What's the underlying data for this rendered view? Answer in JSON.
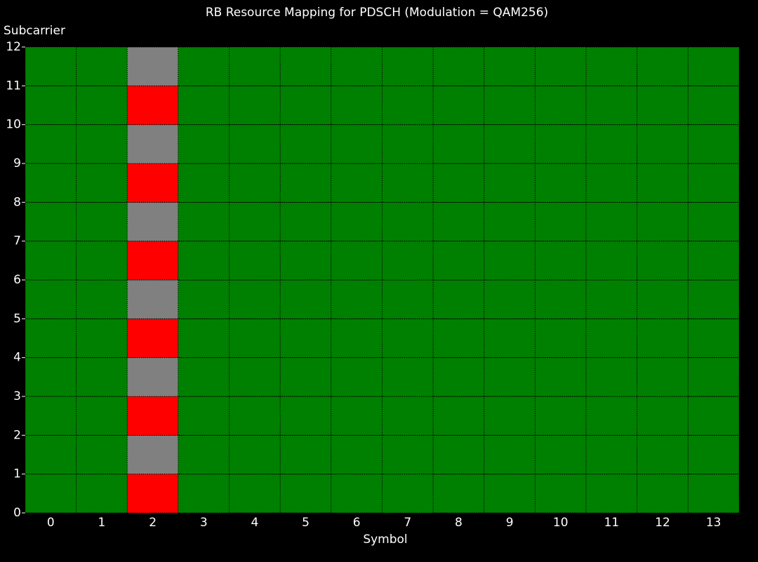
{
  "chart_data": {
    "type": "grid",
    "title": "RB Resource Mapping for PDSCH (Modulation = QAM256)",
    "x_label": "Symbol",
    "y_label": "Subcarrier",
    "categories": [
      0,
      1,
      2,
      3,
      4,
      5,
      6,
      7,
      8,
      9,
      10,
      11,
      12,
      13
    ],
    "ylim": [
      0,
      12
    ],
    "yticks": [
      0,
      1,
      2,
      3,
      4,
      5,
      6,
      7,
      8,
      9,
      10,
      11,
      12
    ],
    "grid": true,
    "cells": [
      [
        "#008000",
        "#008000",
        "#ff0000",
        "#008000",
        "#008000",
        "#008000",
        "#008000",
        "#008000",
        "#008000",
        "#008000",
        "#008000",
        "#008000",
        "#008000",
        "#008000"
      ],
      [
        "#008000",
        "#008000",
        "#808080",
        "#008000",
        "#008000",
        "#008000",
        "#008000",
        "#008000",
        "#008000",
        "#008000",
        "#008000",
        "#008000",
        "#008000",
        "#008000"
      ],
      [
        "#008000",
        "#008000",
        "#ff0000",
        "#008000",
        "#008000",
        "#008000",
        "#008000",
        "#008000",
        "#008000",
        "#008000",
        "#008000",
        "#008000",
        "#008000",
        "#008000"
      ],
      [
        "#008000",
        "#008000",
        "#808080",
        "#008000",
        "#008000",
        "#008000",
        "#008000",
        "#008000",
        "#008000",
        "#008000",
        "#008000",
        "#008000",
        "#008000",
        "#008000"
      ],
      [
        "#008000",
        "#008000",
        "#ff0000",
        "#008000",
        "#008000",
        "#008000",
        "#008000",
        "#008000",
        "#008000",
        "#008000",
        "#008000",
        "#008000",
        "#008000",
        "#008000"
      ],
      [
        "#008000",
        "#008000",
        "#808080",
        "#008000",
        "#008000",
        "#008000",
        "#008000",
        "#008000",
        "#008000",
        "#008000",
        "#008000",
        "#008000",
        "#008000",
        "#008000"
      ],
      [
        "#008000",
        "#008000",
        "#ff0000",
        "#008000",
        "#008000",
        "#008000",
        "#008000",
        "#008000",
        "#008000",
        "#008000",
        "#008000",
        "#008000",
        "#008000",
        "#008000"
      ],
      [
        "#008000",
        "#008000",
        "#808080",
        "#008000",
        "#008000",
        "#008000",
        "#008000",
        "#008000",
        "#008000",
        "#008000",
        "#008000",
        "#008000",
        "#008000",
        "#008000"
      ],
      [
        "#008000",
        "#008000",
        "#ff0000",
        "#008000",
        "#008000",
        "#008000",
        "#008000",
        "#008000",
        "#008000",
        "#008000",
        "#008000",
        "#008000",
        "#008000",
        "#008000"
      ],
      [
        "#008000",
        "#008000",
        "#808080",
        "#008000",
        "#008000",
        "#008000",
        "#008000",
        "#008000",
        "#008000",
        "#008000",
        "#008000",
        "#008000",
        "#008000",
        "#008000"
      ],
      [
        "#008000",
        "#008000",
        "#ff0000",
        "#008000",
        "#008000",
        "#008000",
        "#008000",
        "#008000",
        "#008000",
        "#008000",
        "#008000",
        "#008000",
        "#008000",
        "#008000"
      ],
      [
        "#008000",
        "#008000",
        "#808080",
        "#008000",
        "#008000",
        "#008000",
        "#008000",
        "#008000",
        "#008000",
        "#008000",
        "#008000",
        "#008000",
        "#008000",
        "#008000"
      ]
    ]
  }
}
